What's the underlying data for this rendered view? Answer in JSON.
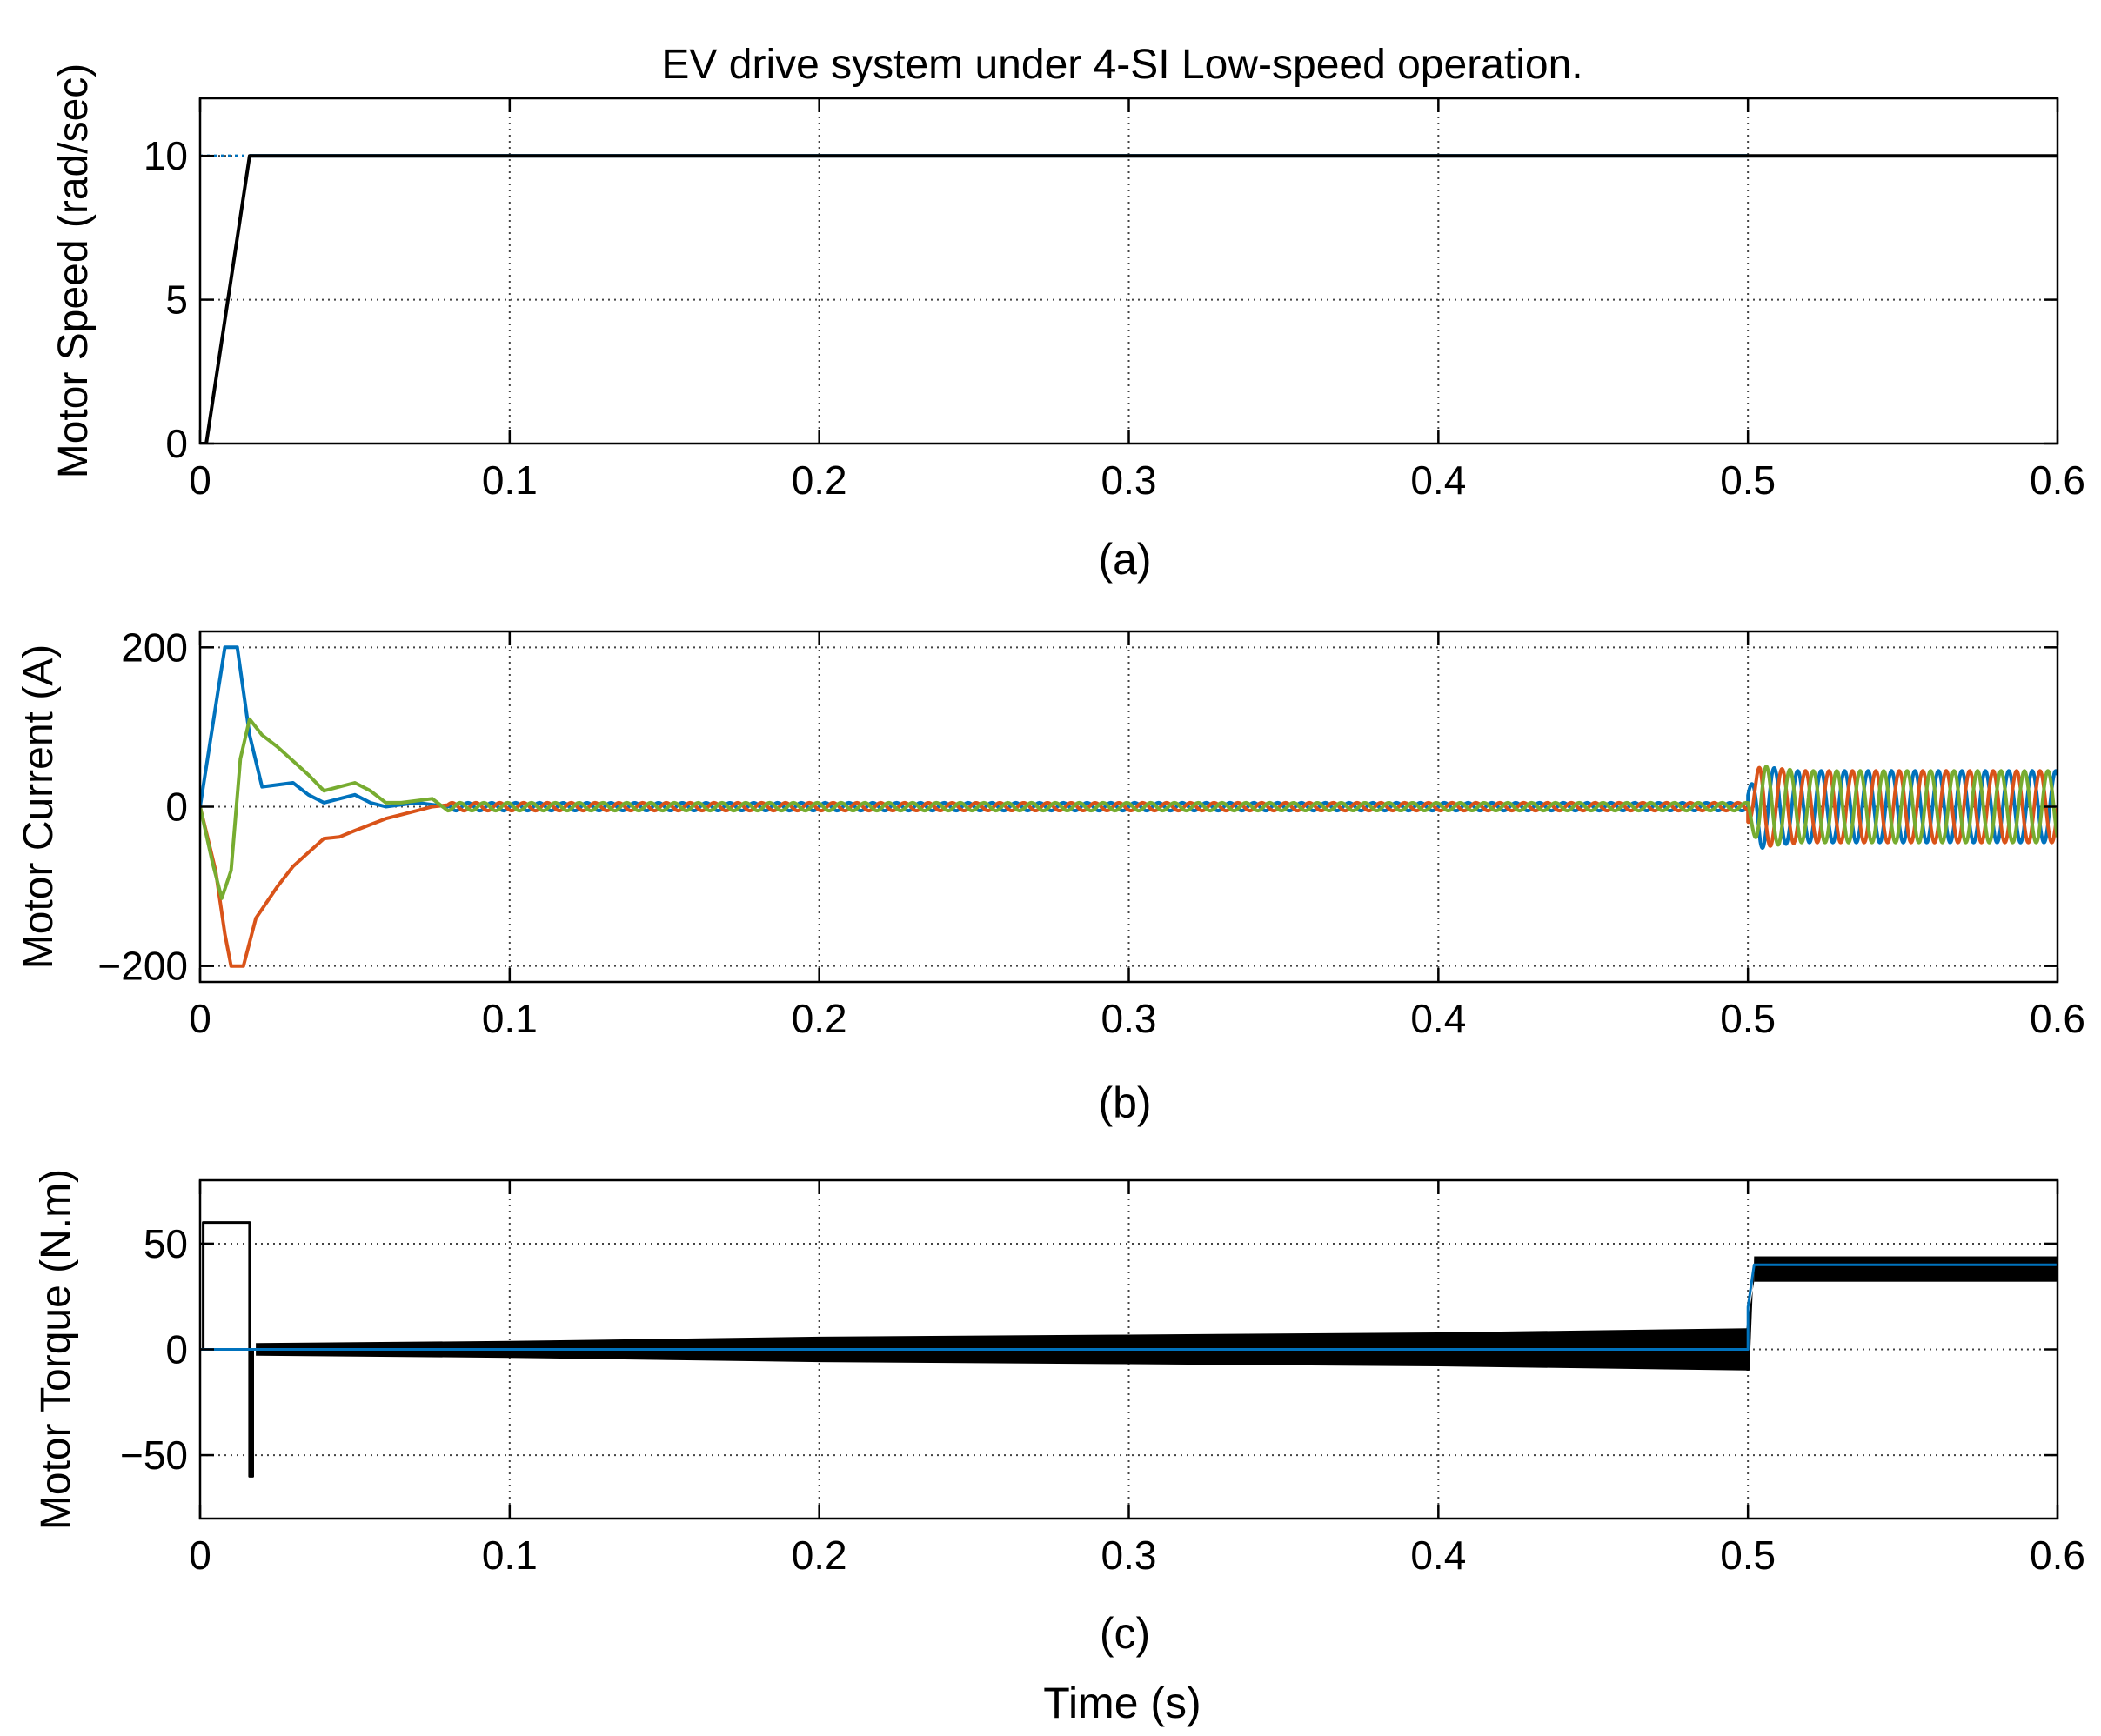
{
  "figure": {
    "title": "EV drive system under 4-SI Low-speed operation.",
    "xlabel": "Time (s)",
    "colors": {
      "ref": "#0072BD",
      "actual": "#000000",
      "phase_a": "#0072BD",
      "phase_b": "#D95319",
      "phase_c": "#77AC30"
    }
  },
  "chart_data": [
    {
      "type": "line",
      "caption": "(a)",
      "ylabel": "Motor Speed (rad/sec)",
      "xlim": [
        0,
        0.6
      ],
      "ylim": [
        0,
        12
      ],
      "xticks": [
        0,
        0.1,
        0.2,
        0.3,
        0.4,
        0.5,
        0.6
      ],
      "xtick_labels": [
        "0",
        "0.1",
        "0.2",
        "0.3",
        "0.4",
        "0.5",
        "0.6"
      ],
      "yticks": [
        0,
        5,
        10
      ],
      "ytick_labels": [
        "0",
        "5",
        "10"
      ],
      "grid": true,
      "series": [
        {
          "color": "#0072BD",
          "style": "dotted-then-solid",
          "x": [
            0,
            0.016,
            0.5,
            0.6
          ],
          "y": [
            10,
            10,
            10,
            10
          ]
        },
        {
          "color": "#000000",
          "x": [
            0,
            0.002,
            0.016,
            0.5,
            0.6
          ],
          "y": [
            0,
            0,
            10,
            10,
            10
          ]
        }
      ]
    },
    {
      "type": "line",
      "caption": "(b)",
      "ylabel": "Motor Current (A)",
      "xlim": [
        0,
        0.6
      ],
      "ylim": [
        -220,
        220
      ],
      "xticks": [
        0,
        0.1,
        0.2,
        0.3,
        0.4,
        0.5,
        0.6
      ],
      "xtick_labels": [
        "0",
        "0.1",
        "0.2",
        "0.3",
        "0.4",
        "0.5",
        "0.6"
      ],
      "yticks": [
        -200,
        0,
        200
      ],
      "ytick_labels": [
        "−200",
        "0",
        "200"
      ],
      "grid": true,
      "series": [
        {
          "color": "#0072BD",
          "x": [
            0,
            0.006,
            0.008,
            0.012,
            0.016,
            0.02,
            0.03,
            0.035,
            0.04,
            0.05,
            0.055,
            0.06,
            0.07,
            0.08
          ],
          "y": [
            0,
            150,
            200,
            200,
            90,
            25,
            30,
            15,
            5,
            15,
            5,
            0,
            5,
            0
          ]
        },
        {
          "color": "#D95319",
          "x": [
            0,
            0.005,
            0.008,
            0.01,
            0.014,
            0.018,
            0.025,
            0.03,
            0.04,
            0.045,
            0.05,
            0.06,
            0.065,
            0.075
          ],
          "y": [
            0,
            -80,
            -160,
            -200,
            -200,
            -140,
            -100,
            -75,
            -40,
            -38,
            -30,
            -15,
            -10,
            0
          ]
        },
        {
          "color": "#77AC30",
          "x": [
            0,
            0.004,
            0.007,
            0.01,
            0.013,
            0.016,
            0.02,
            0.025,
            0.035,
            0.04,
            0.045,
            0.05,
            0.055,
            0.06,
            0.065,
            0.075
          ],
          "y": [
            0,
            -70,
            -115,
            -80,
            60,
            110,
            90,
            75,
            40,
            20,
            25,
            30,
            20,
            5,
            5,
            10
          ]
        }
      ],
      "steady": {
        "from": 0.08,
        "to": 0.5,
        "amplitude": 5,
        "frequency_hz": 130
      },
      "loaded": {
        "from": 0.5,
        "to": 0.6,
        "amplitude": 45,
        "frequency_hz": 132
      }
    },
    {
      "type": "line",
      "caption": "(c)",
      "ylabel": "Motor Torque (N.m)",
      "xlim": [
        0,
        0.6
      ],
      "ylim": [
        -80,
        80
      ],
      "xticks": [
        0,
        0.1,
        0.2,
        0.3,
        0.4,
        0.5,
        0.6
      ],
      "xtick_labels": [
        "0",
        "0.1",
        "0.2",
        "0.3",
        "0.4",
        "0.5",
        "0.6"
      ],
      "yticks": [
        -50,
        0,
        50
      ],
      "ytick_labels": [
        "−50",
        "0",
        "50"
      ],
      "grid": true,
      "series": [
        {
          "color": "#0072BD",
          "x": [
            0,
            0.016,
            0.016,
            0.5,
            0.5,
            0.502,
            0.6
          ],
          "y": [
            0,
            0,
            0,
            0,
            20,
            40,
            40
          ]
        },
        {
          "color": "#000000",
          "x": [
            0,
            0.001,
            0.001,
            0.016,
            0.016,
            0.017,
            0.017,
            0.018
          ],
          "y": [
            0,
            0,
            60,
            60,
            -60,
            -60,
            0,
            0
          ]
        }
      ],
      "ripple_band": {
        "x": [
          0.018,
          0.1,
          0.2,
          0.3,
          0.4,
          0.5
        ],
        "half_width": [
          3,
          4,
          6,
          7,
          8,
          10
        ]
      },
      "loaded_band": {
        "from": 0.5,
        "to": 0.6,
        "center": 38,
        "half_width": 6
      }
    }
  ]
}
